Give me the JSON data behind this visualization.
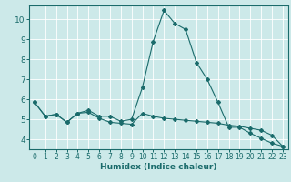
{
  "title": "",
  "xlabel": "Humidex (Indice chaleur)",
  "bg_color": "#cce9e9",
  "line_color": "#1a6b6b",
  "grid_color": "#ffffff",
  "xlim": [
    -0.5,
    23.5
  ],
  "ylim": [
    3.5,
    10.7
  ],
  "xticks": [
    0,
    1,
    2,
    3,
    4,
    5,
    6,
    7,
    8,
    9,
    10,
    11,
    12,
    13,
    14,
    15,
    16,
    17,
    18,
    19,
    20,
    21,
    22,
    23
  ],
  "yticks": [
    4,
    5,
    6,
    7,
    8,
    9,
    10
  ],
  "line1_x": [
    0,
    1,
    2,
    3,
    4,
    5,
    6,
    7,
    8,
    9,
    10,
    11,
    12,
    13,
    14,
    15,
    16,
    17,
    18,
    19,
    20,
    21,
    22,
    23
  ],
  "line1_y": [
    5.85,
    5.15,
    5.25,
    4.85,
    5.3,
    5.45,
    5.15,
    5.15,
    4.9,
    5.0,
    6.6,
    8.9,
    10.45,
    9.8,
    9.5,
    7.85,
    7.0,
    5.85,
    4.6,
    4.6,
    4.3,
    4.05,
    3.8,
    3.65
  ],
  "line2_x": [
    0,
    1,
    2,
    3,
    4,
    5,
    6,
    7,
    8,
    9,
    10,
    11,
    12,
    13,
    14,
    15,
    16,
    17,
    18,
    19,
    20,
    21,
    22,
    23
  ],
  "line2_y": [
    5.85,
    5.15,
    5.25,
    4.85,
    5.3,
    5.35,
    5.05,
    4.85,
    4.8,
    4.75,
    5.3,
    5.15,
    5.05,
    5.0,
    4.95,
    4.9,
    4.85,
    4.8,
    4.7,
    4.65,
    4.55,
    4.45,
    4.2,
    3.65
  ]
}
